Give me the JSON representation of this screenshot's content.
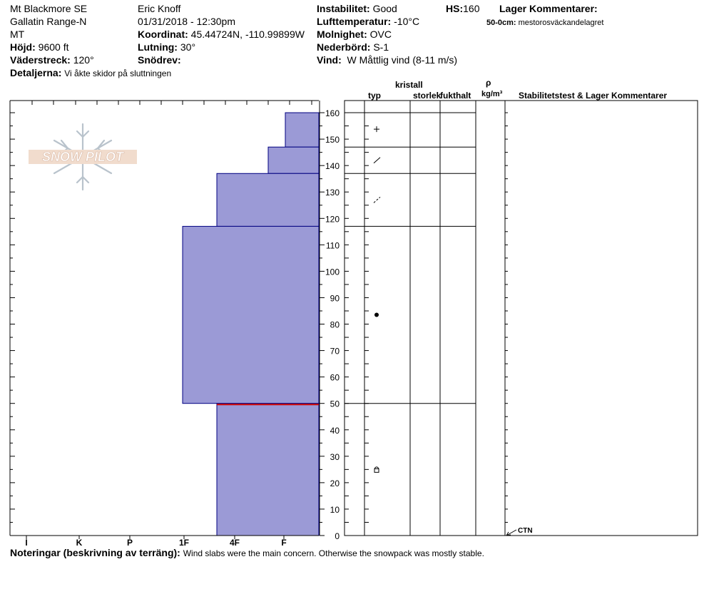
{
  "header": {
    "location": "Mt Blackmore SE",
    "range": "Gallatin Range-N",
    "state": "MT",
    "elevation_label": "Höjd:",
    "elevation_value": "9600 ft",
    "aspect_label": "Väderstreck:",
    "aspect_value": "120°",
    "details_label": "Detaljerna:",
    "details_value": "Vi åkte skidor på sluttningen",
    "observer": "Eric Knoff",
    "datetime": "01/31/2018 - 12:30pm",
    "coord_label": "Koordinat:",
    "coord_value": "45.44724N, -110.99899W",
    "slope_label": "Lutning:",
    "slope_value": "30°",
    "drift_label": "Snödrev:",
    "drift_value": "",
    "stability_label": "Instabilitet:",
    "stability_value": "Good",
    "airtemp_label": "Lufttemperatur:",
    "airtemp_value": "-10°C",
    "cloud_label": "Molnighet:",
    "cloud_value": "OVC",
    "precip_label": "Nederbörd:",
    "precip_value": "S-1",
    "wind_label": "Vind:",
    "wind_value": "W Måttlig vind (8-11 m/s)",
    "hs_label": "HS:",
    "hs_value": "160",
    "layer_comments_label": "Lager Kommentarer:",
    "layer_comment_depth": "50-0cm:",
    "layer_comment_text": "mestorosväckandelagret"
  },
  "columns": {
    "crystal": "kristall",
    "type": "typ",
    "size": "storlek",
    "moisture": "fukthalt",
    "rho": "ρ",
    "density_unit": "kg/m³",
    "stability": "Stabilitetstest & Lager Kommentarer"
  },
  "notes": {
    "label": "Noteringar (beskrivning av terräng):",
    "text": "Wind slabs were the main concern. Otherwise the snowpack was mostly stable."
  },
  "logo_text": "SNOW PILOT",
  "test_result": "CTN",
  "colors": {
    "layer_fill": "#9b9ad6",
    "layer_stroke": "#000080",
    "weak_layer": "#cc0000"
  },
  "chart_data": {
    "type": "bar",
    "title": "",
    "ylabel": "",
    "xlabel": "",
    "y_ticks_labeled": [
      0,
      10,
      20,
      30,
      40,
      50,
      60,
      70,
      80,
      90,
      100,
      110,
      120,
      130,
      140,
      150,
      160
    ],
    "ylim": [
      0,
      165
    ],
    "hardness_scale": [
      "I",
      "K",
      "P",
      "1F",
      "4F",
      "F"
    ],
    "layers": [
      {
        "top": 160,
        "bottom": 147,
        "hardness": "F",
        "grain": "precipitation-particles"
      },
      {
        "top": 147,
        "bottom": 137,
        "hardness": "F+",
        "grain": "decomposing-fragments"
      },
      {
        "top": 137,
        "bottom": 117,
        "hardness": "4F",
        "grain": "decomposing-fragments"
      },
      {
        "top": 117,
        "bottom": 50,
        "hardness": "1F-",
        "grain": "rounded-grains"
      },
      {
        "top": 50,
        "bottom": 0,
        "hardness": "4F",
        "grain": "faceted-rounded"
      }
    ],
    "weak_layer_depth": 50,
    "test_result_depth": 0
  }
}
